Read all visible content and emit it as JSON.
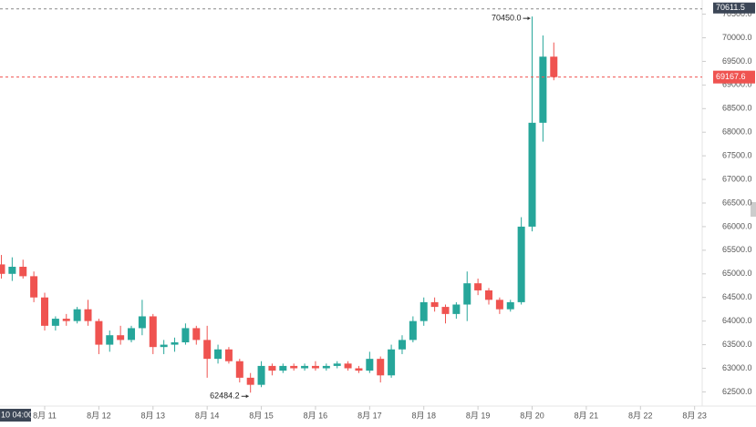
{
  "chart_data": {
    "type": "candlestick",
    "up_color": "#26a69a",
    "down_color": "#ef5350",
    "xlim": [
      10.175,
      23.14
    ],
    "ylim": [
      62200,
      70800
    ],
    "xticks": [
      {
        "value": 11,
        "label": "8月 11"
      },
      {
        "value": 12,
        "label": "8月 12"
      },
      {
        "value": 13,
        "label": "8月 13"
      },
      {
        "value": 14,
        "label": "8月 14"
      },
      {
        "value": 15,
        "label": "8月 15"
      },
      {
        "value": 16,
        "label": "8月 16"
      },
      {
        "value": 17,
        "label": "8月 17"
      },
      {
        "value": 18,
        "label": "8月 18"
      },
      {
        "value": 19,
        "label": "8月 19"
      },
      {
        "value": 20,
        "label": "8月 20"
      },
      {
        "value": 21,
        "label": "8月 21"
      },
      {
        "value": 22,
        "label": "8月 22"
      },
      {
        "value": 23,
        "label": "8月 23"
      }
    ],
    "yticks": [
      {
        "value": 62500,
        "label": "62500.0"
      },
      {
        "value": 63000,
        "label": "63000.0"
      },
      {
        "value": 63500,
        "label": "63500.0"
      },
      {
        "value": 64000,
        "label": "64000.0"
      },
      {
        "value": 64500,
        "label": "64500.0"
      },
      {
        "value": 65000,
        "label": "65000.0"
      },
      {
        "value": 65500,
        "label": "65500.0"
      },
      {
        "value": 66000,
        "label": "66000.0"
      },
      {
        "value": 66500,
        "label": "66500.0"
      },
      {
        "value": 67000,
        "label": "67000.0"
      },
      {
        "value": 67500,
        "label": "67500.0"
      },
      {
        "value": 68000,
        "label": "68000.0"
      },
      {
        "value": 68500,
        "label": "68500.0"
      },
      {
        "value": 69000,
        "label": "69000.0"
      },
      {
        "value": 69500,
        "label": "69500.0"
      },
      {
        "value": 70000,
        "label": "70000.0"
      },
      {
        "value": 70500,
        "label": "70500.0"
      }
    ],
    "x": [
      10.2,
      10.4,
      10.6,
      10.8,
      11.0,
      11.2,
      11.4,
      11.6,
      11.8,
      12.0,
      12.2,
      12.4,
      12.6,
      12.8,
      13.0,
      13.2,
      13.4,
      13.6,
      13.8,
      14.0,
      14.2,
      14.4,
      14.6,
      14.8,
      15.0,
      15.2,
      15.4,
      15.6,
      15.8,
      16.0,
      16.2,
      16.4,
      16.6,
      16.8,
      17.0,
      17.2,
      17.4,
      17.6,
      17.8,
      18.0,
      18.2,
      18.4,
      18.6,
      18.8,
      19.0,
      19.2,
      19.4,
      19.6,
      19.8,
      20.0,
      20.2,
      20.4
    ],
    "open": [
      65200,
      65000,
      65150,
      64950,
      64500,
      63900,
      64050,
      64000,
      64250,
      64000,
      63500,
      63700,
      63600,
      63850,
      64100,
      63450,
      63500,
      63550,
      63850,
      63600,
      63200,
      63400,
      63150,
      62800,
      62650,
      63050,
      62950,
      63050,
      63000,
      63050,
      63000,
      63050,
      63100,
      63000,
      62950,
      63200,
      62850,
      63400,
      63600,
      64000,
      64400,
      64300,
      64150,
      64350,
      64800,
      64650,
      64450,
      64250,
      64400,
      66000,
      68200,
      69600
    ],
    "high": [
      65400,
      65350,
      65300,
      65050,
      64600,
      64100,
      64150,
      64300,
      64450,
      64050,
      63800,
      63900,
      63900,
      64450,
      64150,
      63600,
      63650,
      63950,
      63900,
      63900,
      63500,
      63450,
      63200,
      62900,
      63150,
      63100,
      63100,
      63100,
      63100,
      63150,
      63100,
      63150,
      63150,
      63050,
      63350,
      63250,
      63500,
      63700,
      64100,
      64500,
      64500,
      64350,
      64400,
      65050,
      64900,
      64700,
      64500,
      64450,
      66200,
      70450,
      70050,
      69900
    ],
    "low": [
      64900,
      64850,
      64900,
      64400,
      63800,
      63800,
      63900,
      63950,
      63900,
      63300,
      63350,
      63500,
      63550,
      63700,
      63300,
      63300,
      63350,
      63500,
      63500,
      62800,
      63100,
      63100,
      62700,
      62484.2,
      62600,
      62850,
      62900,
      62950,
      62950,
      62950,
      62950,
      63000,
      62950,
      62900,
      62900,
      62700,
      62800,
      63300,
      63550,
      63900,
      64200,
      63950,
      64050,
      64000,
      64550,
      64350,
      64150,
      64200,
      64350,
      65900,
      67800,
      69100
    ],
    "close": [
      65000,
      65150,
      64950,
      64500,
      63900,
      64050,
      64000,
      64250,
      64000,
      63500,
      63700,
      63600,
      63850,
      64100,
      63450,
      63500,
      63550,
      63850,
      63600,
      63200,
      63400,
      63150,
      62800,
      62650,
      63050,
      62950,
      63050,
      63000,
      63050,
      63000,
      63050,
      63100,
      63000,
      62950,
      63200,
      62850,
      63400,
      63600,
      64000,
      64400,
      64300,
      64150,
      64350,
      64800,
      64650,
      64450,
      64250,
      64400,
      66000,
      68200,
      69600,
      69167.6
    ],
    "last_price": 69167.6,
    "annotations": [
      {
        "label": "70450.0",
        "value": 70450,
        "x": 20.0
      },
      {
        "label": "62484.2",
        "value": 62484.2,
        "x": 14.8
      }
    ],
    "crosshair": {
      "price": 70611.5,
      "time_label": "10 04:00"
    }
  }
}
